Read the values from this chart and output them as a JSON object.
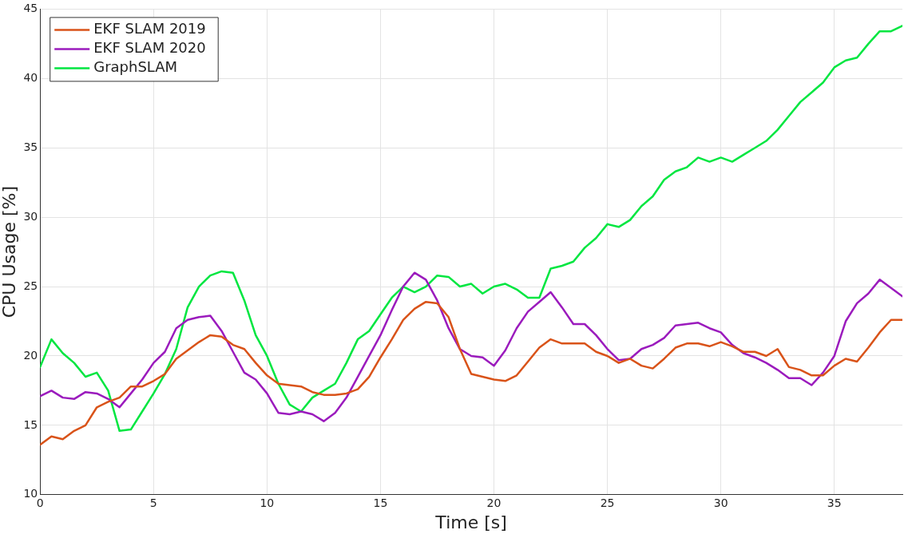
{
  "chart_data": {
    "type": "line",
    "xlabel": "Time [s]",
    "ylabel": "CPU Usage [%]",
    "x": [
      0,
      0.5,
      1,
      1.5,
      2,
      2.5,
      3,
      3.5,
      4,
      4.5,
      5,
      5.5,
      6,
      6.5,
      7,
      7.5,
      8,
      8.5,
      9,
      9.5,
      10,
      10.5,
      11,
      11.5,
      12,
      12.5,
      13,
      13.5,
      14,
      14.5,
      15,
      15.5,
      16,
      16.5,
      17,
      17.5,
      18,
      18.5,
      19,
      19.5,
      20,
      20.5,
      21,
      21.5,
      22,
      22.5,
      23,
      23.5,
      24,
      24.5,
      25,
      25.5,
      26,
      26.5,
      27,
      27.5,
      28,
      28.5,
      29,
      29.5,
      30,
      30.5,
      31,
      31.5,
      32,
      32.5,
      33,
      33.5,
      34,
      34.5,
      35,
      35.5,
      36,
      36.5,
      37,
      37.5,
      38
    ],
    "series": [
      {
        "name": "EKF SLAM 2019",
        "color": "#d95319",
        "values": [
          13.6,
          14.2,
          14.0,
          14.6,
          15.0,
          16.3,
          16.7,
          17.0,
          17.8,
          17.8,
          18.2,
          18.7,
          19.8,
          20.4,
          21.0,
          21.5,
          21.4,
          20.8,
          20.5,
          19.5,
          18.6,
          18.0,
          17.9,
          17.8,
          17.4,
          17.2,
          17.2,
          17.3,
          17.6,
          18.5,
          19.9,
          21.2,
          22.6,
          23.4,
          23.9,
          23.8,
          22.8,
          20.5,
          18.7,
          18.5,
          18.3,
          18.2,
          18.6,
          19.6,
          20.6,
          21.2,
          20.9,
          20.9,
          20.9,
          20.3,
          20.0,
          19.5,
          19.8,
          19.3,
          19.1,
          19.8,
          20.6,
          20.9,
          20.9,
          20.7,
          21.0,
          20.7,
          20.3,
          20.3,
          20.0,
          20.5,
          19.2,
          19.0,
          18.6,
          18.6,
          19.3,
          19.8,
          19.6,
          20.6,
          21.7,
          22.6,
          22.6
        ]
      },
      {
        "name": "EKF SLAM 2020",
        "color": "#9b1bbd",
        "values": [
          17.1,
          17.5,
          17.0,
          16.9,
          17.4,
          17.3,
          16.9,
          16.3,
          17.3,
          18.3,
          19.5,
          20.3,
          22.0,
          22.6,
          22.8,
          22.9,
          21.8,
          20.3,
          18.8,
          18.3,
          17.3,
          15.9,
          15.8,
          16.0,
          15.8,
          15.3,
          15.9,
          17.0,
          18.5,
          20.0,
          21.5,
          23.3,
          25.0,
          26.0,
          25.5,
          24.0,
          22.0,
          20.5,
          20.0,
          19.9,
          19.3,
          20.4,
          22.0,
          23.2,
          23.9,
          24.6,
          23.5,
          22.3,
          22.3,
          21.5,
          20.5,
          19.7,
          19.8,
          20.5,
          20.8,
          21.3,
          22.2,
          22.3,
          22.4,
          22.0,
          21.7,
          20.8,
          20.2,
          19.9,
          19.5,
          19.0,
          18.4,
          18.4,
          17.9,
          18.8,
          20.0,
          22.5,
          23.8,
          24.5,
          25.5,
          24.9,
          24.3
        ]
      },
      {
        "name": "GraphSLAM",
        "color": "#00e640",
        "values": [
          19.2,
          21.2,
          20.2,
          19.5,
          18.5,
          18.8,
          17.5,
          14.6,
          14.7,
          16.0,
          17.3,
          18.7,
          20.5,
          23.5,
          25.0,
          25.8,
          26.1,
          26.0,
          24.0,
          21.5,
          20.0,
          18.0,
          16.5,
          16.0,
          17.0,
          17.5,
          18.0,
          19.5,
          21.2,
          21.8,
          23.0,
          24.2,
          25.0,
          24.6,
          25.0,
          25.8,
          25.7,
          25.0,
          25.2,
          24.5,
          25.0,
          25.2,
          24.8,
          24.2,
          24.2,
          26.3,
          26.5,
          26.8,
          27.8,
          28.5,
          29.5,
          29.3,
          29.8,
          30.8,
          31.5,
          32.7,
          33.3,
          33.6,
          34.3,
          34.0,
          34.3,
          34.0,
          34.5,
          35.0,
          35.5,
          36.3,
          37.3,
          38.3,
          39.0,
          39.7,
          40.8,
          41.3,
          41.5,
          42.5,
          43.4,
          43.4,
          43.8
        ]
      }
    ],
    "xlim": [
      0,
      38
    ],
    "xticks": [
      0,
      5,
      10,
      15,
      20,
      25,
      30,
      35
    ],
    "ylim": [
      10,
      45
    ],
    "yticks": [
      10,
      15,
      20,
      25,
      30,
      35,
      40,
      45
    ],
    "grid": true,
    "legend": "top left",
    "marker": "none",
    "line_style": "solid"
  }
}
